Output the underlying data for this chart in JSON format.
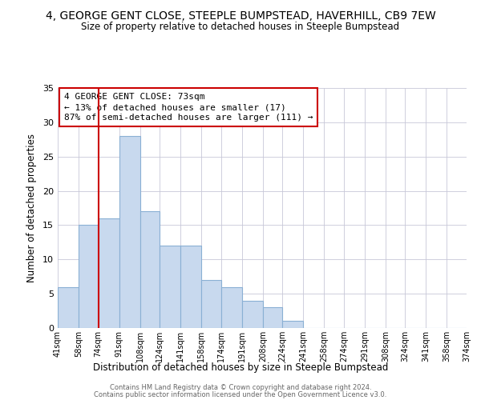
{
  "title1": "4, GEORGE GENT CLOSE, STEEPLE BUMPSTEAD, HAVERHILL, CB9 7EW",
  "title2": "Size of property relative to detached houses in Steeple Bumpstead",
  "xlabel": "Distribution of detached houses by size in Steeple Bumpstead",
  "ylabel": "Number of detached properties",
  "bins": [
    41,
    58,
    74,
    91,
    108,
    124,
    141,
    158,
    174,
    191,
    208,
    224,
    241,
    258,
    274,
    291,
    308,
    324,
    341,
    358,
    374
  ],
  "counts": [
    6,
    15,
    16,
    28,
    17,
    12,
    12,
    7,
    6,
    4,
    3,
    1,
    0,
    0,
    0,
    0,
    0,
    0,
    0,
    0
  ],
  "bar_color": "#c8d9ee",
  "bar_edge_color": "#8ab0d4",
  "vline_x": 74,
  "vline_color": "#cc0000",
  "ylim": [
    0,
    35
  ],
  "yticks": [
    0,
    5,
    10,
    15,
    20,
    25,
    30,
    35
  ],
  "annotation_title": "4 GEORGE GENT CLOSE: 73sqm",
  "annotation_line1": "← 13% of detached houses are smaller (17)",
  "annotation_line2": "87% of semi-detached houses are larger (111) →",
  "annotation_box_color": "#ffffff",
  "annotation_box_edge": "#cc0000",
  "footer1": "Contains HM Land Registry data © Crown copyright and database right 2024.",
  "footer2": "Contains public sector information licensed under the Open Government Licence v3.0.",
  "tick_labels": [
    "41sqm",
    "58sqm",
    "74sqm",
    "91sqm",
    "108sqm",
    "124sqm",
    "141sqm",
    "158sqm",
    "174sqm",
    "191sqm",
    "208sqm",
    "224sqm",
    "241sqm",
    "258sqm",
    "274sqm",
    "291sqm",
    "308sqm",
    "324sqm",
    "341sqm",
    "358sqm",
    "374sqm"
  ]
}
